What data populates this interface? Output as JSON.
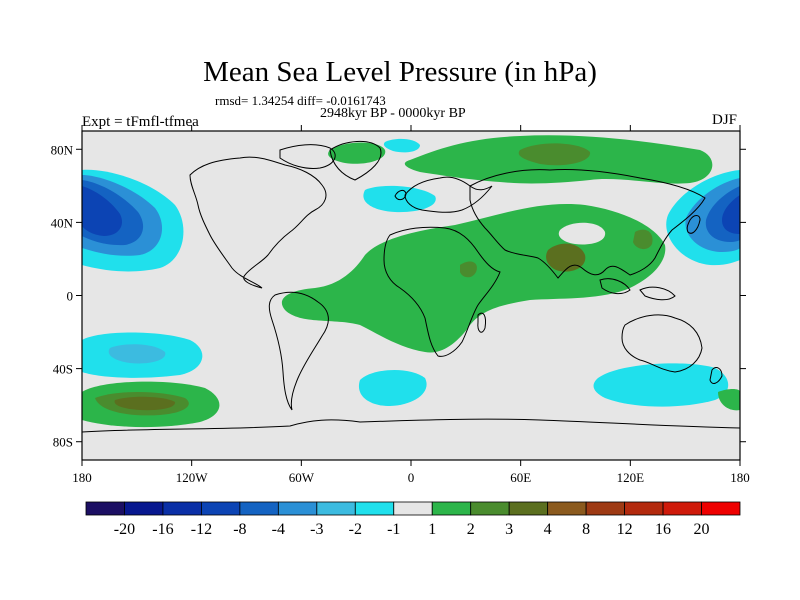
{
  "title": "Mean Sea Level Pressure (in hPa)",
  "stats_line": "rmsd= 1.34254 diff= -0.0161743",
  "period_line": "2948kyr BP - 0000kyr BP",
  "experiment": "Expt = tFmfl-tfmea",
  "season": "DJF",
  "map_extent": {
    "lon": [
      -180,
      180
    ],
    "lat": [
      -90,
      90
    ]
  },
  "lat_ticks": [
    "80N",
    "40N",
    "0",
    "40S",
    "80S"
  ],
  "lat_values": [
    80,
    40,
    0,
    -40,
    -80
  ],
  "lon_ticks": [
    "180",
    "120W",
    "60W",
    "0",
    "60E",
    "120E",
    "180"
  ],
  "lon_values": [
    -180,
    -120,
    -60,
    0,
    60,
    120,
    180
  ],
  "colorbar": {
    "labels": [
      "-20",
      "-16",
      "-12",
      "-8",
      "-4",
      "-3",
      "-2",
      "-1",
      "1",
      "2",
      "3",
      "4",
      "8",
      "12",
      "16",
      "20"
    ],
    "colors": [
      "#1c0f63",
      "#08188f",
      "#0a2fa6",
      "#0c44b4",
      "#1463c2",
      "#2b90d6",
      "#3cbbe0",
      "#20e0ec",
      "#e6e6e6",
      "#2cb54a",
      "#4a8c2e",
      "#5b6f1f",
      "#8b5a1e",
      "#9e3a14",
      "#b32a0e",
      "#cf1a0a",
      "#ee0000"
    ]
  },
  "colors": {
    "background": "#e6e6e6",
    "coast": "#000000"
  }
}
